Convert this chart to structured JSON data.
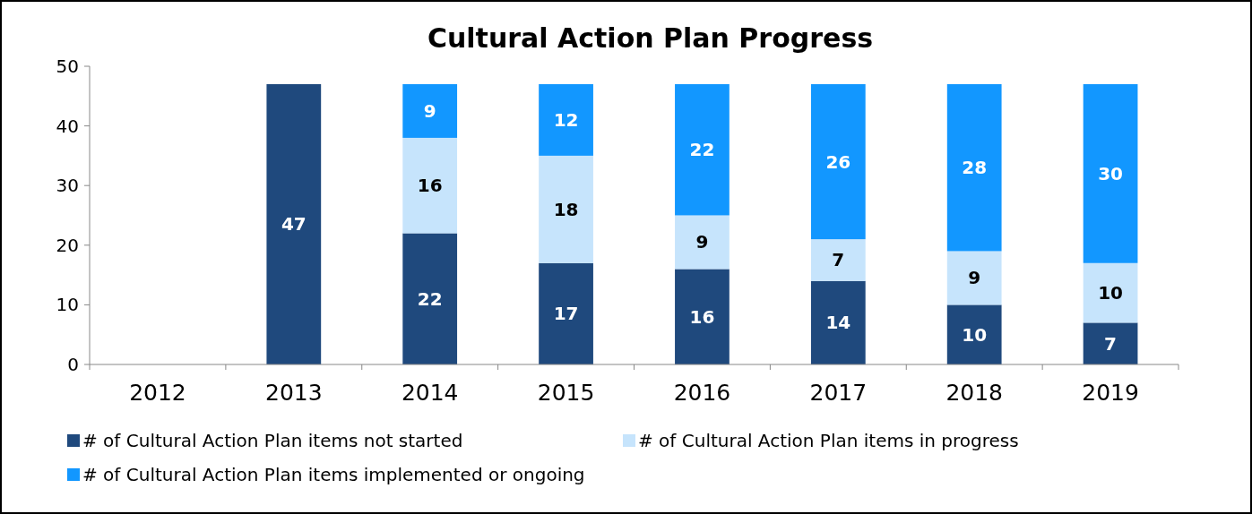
{
  "chart_data": {
    "type": "bar",
    "title": "Cultural Action Plan Progress",
    "categories": [
      "2012",
      "2013",
      "2014",
      "2015",
      "2016",
      "2017",
      "2018",
      "2019"
    ],
    "stacked": true,
    "data_labels": true,
    "legend": "bottom",
    "grid": false,
    "ylim": [
      0,
      50
    ],
    "yticks": [
      0,
      10,
      20,
      30,
      40,
      50
    ],
    "series": [
      {
        "name": "# of Cultural Action Plan items not started",
        "color": "#1f497d",
        "values": [
          null,
          47,
          22,
          17,
          16,
          14,
          10,
          7
        ]
      },
      {
        "name": "# of Cultural Action Plan items in progress",
        "color": "#c6e4fc",
        "values": [
          null,
          null,
          16,
          18,
          9,
          7,
          9,
          10
        ]
      },
      {
        "name": "# of Cultural Action Plan items implemented or ongoing",
        "color": "#1297ff",
        "values": [
          null,
          null,
          9,
          12,
          22,
          26,
          28,
          30
        ]
      }
    ]
  }
}
